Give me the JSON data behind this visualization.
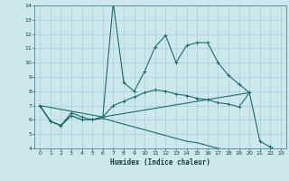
{
  "xlabel": "Humidex (Indice chaleur)",
  "x": [
    0,
    1,
    2,
    3,
    4,
    5,
    6,
    7,
    8,
    9,
    10,
    11,
    12,
    13,
    14,
    15,
    16,
    17,
    18,
    19,
    20,
    21,
    22,
    23
  ],
  "line1": [
    7.0,
    5.9,
    5.6,
    6.5,
    6.2,
    6.0,
    6.2,
    14.2,
    8.6,
    8.0,
    9.4,
    11.1,
    11.9,
    10.0,
    11.2,
    11.4,
    11.4,
    10.0,
    9.1,
    8.5,
    7.9,
    4.5,
    4.1,
    3.7
  ],
  "line2": [
    7.0,
    5.9,
    5.6,
    6.3,
    6.0,
    6.0,
    6.2,
    7.0,
    7.3,
    7.6,
    7.9,
    8.1,
    8.0,
    7.8,
    7.7,
    7.5,
    7.4,
    7.2,
    7.1,
    6.9,
    7.9,
    null,
    null,
    null
  ],
  "line3_x": [
    0,
    6,
    20
  ],
  "line3_y": [
    7.0,
    6.2,
    7.9
  ],
  "line4": [
    7.0,
    5.9,
    5.6,
    6.3,
    6.0,
    6.0,
    6.1,
    5.9,
    5.7,
    5.5,
    5.3,
    5.1,
    4.9,
    4.7,
    4.5,
    4.4,
    4.2,
    4.0,
    3.9,
    null,
    null,
    null,
    null,
    null
  ],
  "color": "#1c6e64",
  "bg_color": "#cce8ec",
  "grid_color": "#aacdd4",
  "ylim": [
    4,
    14
  ],
  "xlim": [
    -0.5,
    23.5
  ],
  "yticks": [
    4,
    5,
    6,
    7,
    8,
    9,
    10,
    11,
    12,
    13,
    14
  ],
  "xticks": [
    0,
    1,
    2,
    3,
    4,
    5,
    6,
    7,
    8,
    9,
    10,
    11,
    12,
    13,
    14,
    15,
    16,
    17,
    18,
    19,
    20,
    21,
    22,
    23
  ]
}
